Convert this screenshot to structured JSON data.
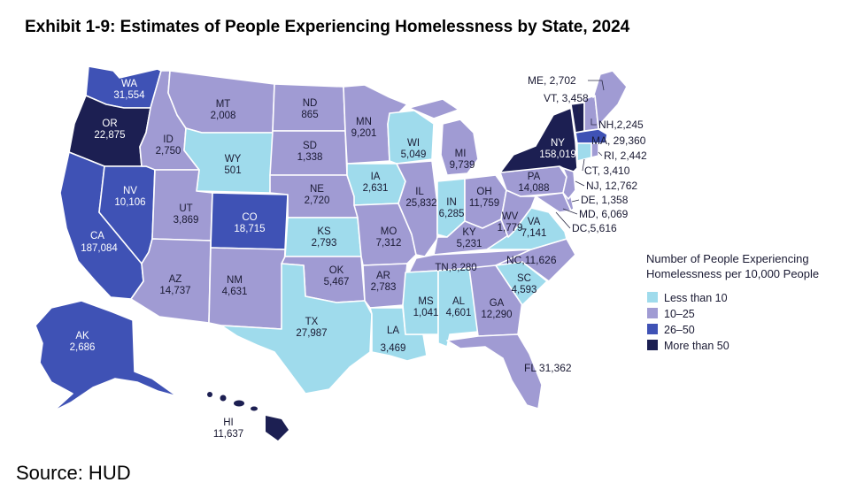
{
  "title": "Exhibit 1-9: Estimates of People Experiencing Homelessness by State, 2024",
  "source": "Source: HUD",
  "colors": {
    "less_than_10": "#9fdbec",
    "10_25": "#a09bd3",
    "26_50": "#3f52b5",
    "more_than_50": "#1c1f52"
  },
  "legend": {
    "title_line1": "Number of People Experiencing",
    "title_line2": "Homelessness per 10,000 People",
    "items": [
      {
        "label": "Less than 10",
        "color": "#9fdbec"
      },
      {
        "label": "10–25",
        "color": "#a09bd3"
      },
      {
        "label": "26–50",
        "color": "#3f52b5"
      },
      {
        "label": "More than 50",
        "color": "#1c1f52"
      }
    ]
  },
  "states": {
    "WA": {
      "abbr": "WA",
      "value": "31,554"
    },
    "OR": {
      "abbr": "OR",
      "value": "22,875"
    },
    "CA": {
      "abbr": "CA",
      "value": "187,084"
    },
    "NV": {
      "abbr": "NV",
      "value": "10,106"
    },
    "ID": {
      "abbr": "ID",
      "value": "2,750"
    },
    "MT": {
      "abbr": "MT",
      "value": "2,008"
    },
    "WY": {
      "abbr": "WY",
      "value": "501"
    },
    "UT": {
      "abbr": "UT",
      "value": "3,869"
    },
    "CO": {
      "abbr": "CO",
      "value": "18,715"
    },
    "AZ": {
      "abbr": "AZ",
      "value": "14,737"
    },
    "NM": {
      "abbr": "NM",
      "value": "4,631"
    },
    "ND": {
      "abbr": "ND",
      "value": "865"
    },
    "SD": {
      "abbr": "SD",
      "value": "1,338"
    },
    "NE": {
      "abbr": "NE",
      "value": "2,720"
    },
    "KS": {
      "abbr": "KS",
      "value": "2,793"
    },
    "OK": {
      "abbr": "OK",
      "value": "5,467"
    },
    "TX": {
      "abbr": "TX",
      "value": "27,987"
    },
    "MN": {
      "abbr": "MN",
      "value": "9,201"
    },
    "IA": {
      "abbr": "IA",
      "value": "2,631"
    },
    "MO": {
      "abbr": "MO",
      "value": "7,312"
    },
    "AR": {
      "abbr": "AR",
      "value": "2,783"
    },
    "LA": {
      "abbr": "LA",
      "value": "3,469"
    },
    "WI": {
      "abbr": "WI",
      "value": "5,049"
    },
    "IL": {
      "abbr": "IL",
      "value": "25,832"
    },
    "MI": {
      "abbr": "MI",
      "value": "9,739"
    },
    "IN": {
      "abbr": "IN",
      "value": "6,285"
    },
    "OH": {
      "abbr": "OH",
      "value": "11,759"
    },
    "KY": {
      "abbr": "KY",
      "value": "5,231"
    },
    "TN": {
      "abbr": "TN",
      "value": "8,280"
    },
    "MS": {
      "abbr": "MS",
      "value": "1,041"
    },
    "AL": {
      "abbr": "AL",
      "value": "4,601"
    },
    "GA": {
      "abbr": "GA",
      "value": "12,290"
    },
    "FL": {
      "abbr": "FL",
      "value": "31,362"
    },
    "SC": {
      "abbr": "SC",
      "value": "4,593"
    },
    "NC": {
      "abbr": "NC",
      "value": "11,626"
    },
    "VA": {
      "abbr": "VA",
      "value": "7,141"
    },
    "WV": {
      "abbr": "WV",
      "value": "1,779"
    },
    "PA": {
      "abbr": "PA",
      "value": "14,088"
    },
    "NY": {
      "abbr": "NY",
      "value": "158,019"
    },
    "AK": {
      "abbr": "AK",
      "value": "2,686"
    },
    "HI": {
      "abbr": "HI",
      "value": "11,637"
    }
  },
  "callouts": {
    "ME": "ME, 2,702",
    "VT": "VT, 3,458",
    "NH": "NH,2,245",
    "MA": "MA, 29,360",
    "RI": "RI, 2,442",
    "CT": "CT, 3,410",
    "NJ": "NJ, 12,762",
    "DE": "DE, 1,358",
    "MD": "MD, 6,069",
    "DC": "DC,5,616"
  }
}
